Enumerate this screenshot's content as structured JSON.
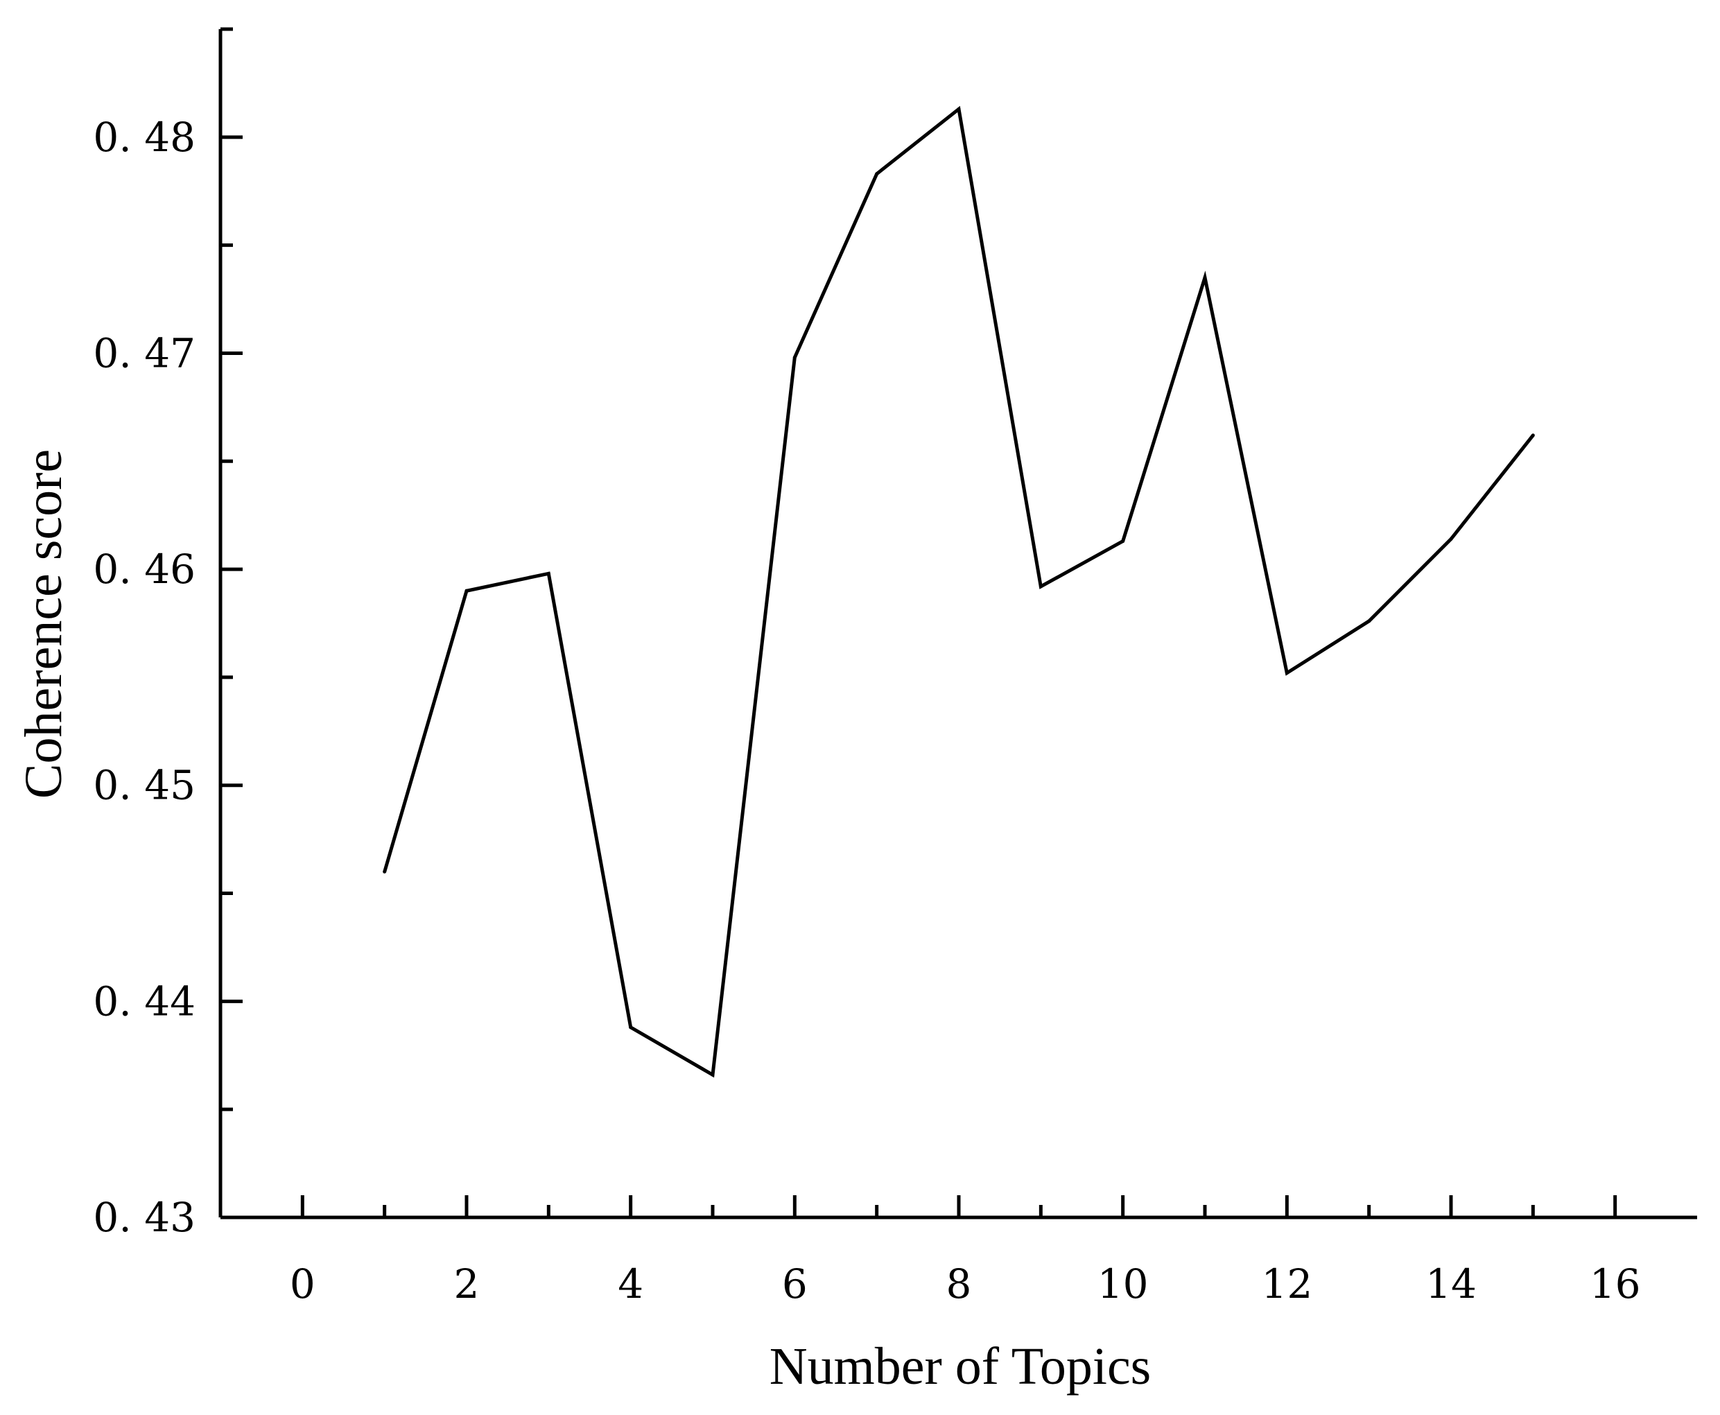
{
  "chart_data": {
    "type": "line",
    "xlabel": "Number of Topics",
    "ylabel": "Coherence score",
    "xlim": [
      -1,
      17
    ],
    "ylim": [
      0.43,
      0.485
    ],
    "x_ticks": [
      0,
      2,
      4,
      6,
      8,
      10,
      12,
      14,
      16
    ],
    "x_tick_labels": [
      "0",
      "2",
      "4",
      "6",
      "8",
      "10",
      "12",
      "14",
      "16"
    ],
    "x_minor_ticks": [
      1,
      3,
      5,
      7,
      9,
      11,
      13,
      15
    ],
    "y_ticks": [
      0.43,
      0.44,
      0.45,
      0.46,
      0.47,
      0.48
    ],
    "y_tick_labels": [
      "0. 43",
      "0. 44",
      "0. 45",
      "0. 46",
      "0. 47",
      "0. 48"
    ],
    "y_minor_ticks": [
      0.435,
      0.445,
      0.455,
      0.465,
      0.475,
      0.485
    ],
    "grid": false,
    "series": [
      {
        "color": "#000000",
        "x": [
          1,
          2,
          3,
          4,
          5,
          6,
          7,
          8,
          9,
          10,
          11,
          12,
          13,
          14,
          15
        ],
        "y": [
          0.446,
          0.459,
          0.4598,
          0.4388,
          0.4366,
          0.4698,
          0.4783,
          0.4813,
          0.4592,
          0.4613,
          0.4735,
          0.4552,
          0.4576,
          0.4614,
          0.4662
        ]
      }
    ]
  }
}
